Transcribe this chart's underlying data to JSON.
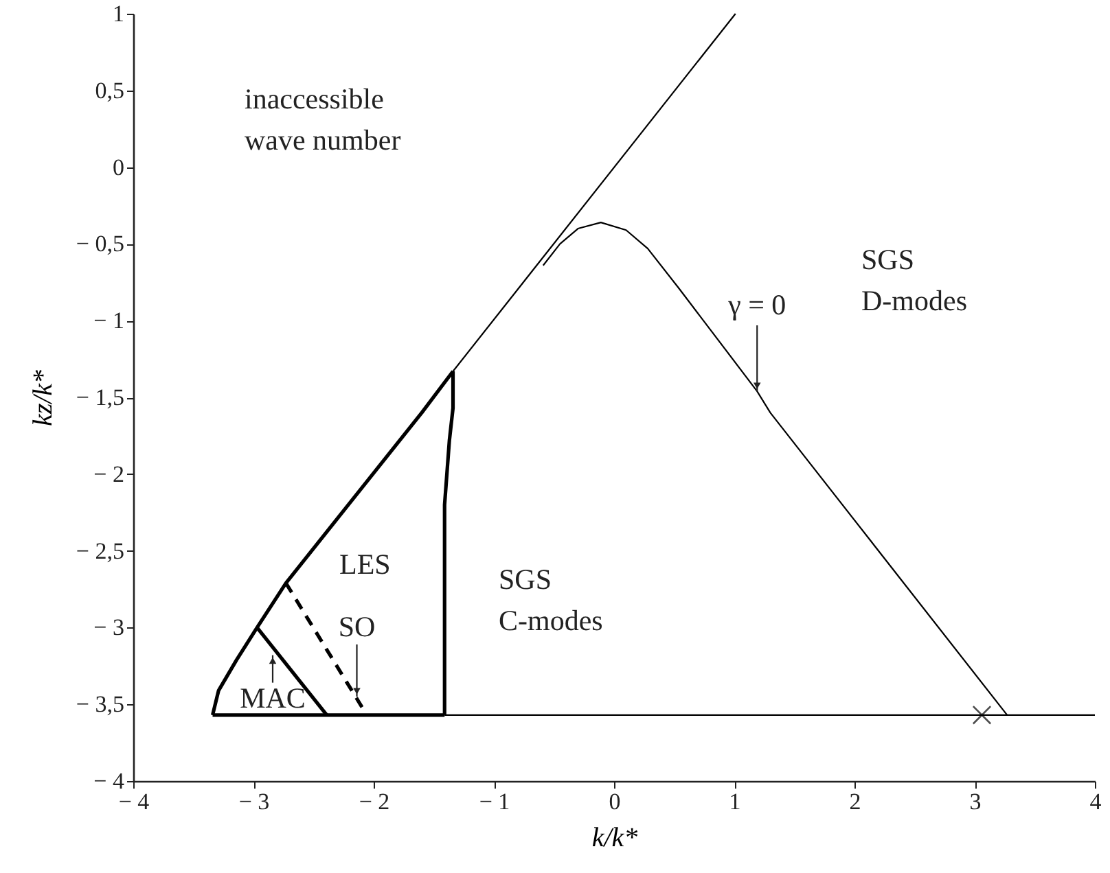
{
  "chart_data": {
    "type": "line",
    "xlabel": "k/k*",
    "ylabel": "kz/k*",
    "xlim": [
      -4,
      4
    ],
    "ylim": [
      -4,
      1
    ],
    "xticks": [
      {
        "value": -4,
        "label": "− 4"
      },
      {
        "value": -3,
        "label": "− 3"
      },
      {
        "value": -2,
        "label": "− 2"
      },
      {
        "value": -1,
        "label": "− 1"
      },
      0,
      1,
      2,
      3,
      4
    ],
    "yticks": [
      {
        "value": -4,
        "label": "− 4"
      },
      {
        "value": -3.5,
        "label": "− 3,5"
      },
      {
        "value": -3,
        "label": "− 3"
      },
      {
        "value": -2.5,
        "label": "− 2,5"
      },
      {
        "value": -2,
        "label": "− 2"
      },
      {
        "value": -1.5,
        "label": "− 1,5"
      },
      {
        "value": -1,
        "label": "− 1"
      },
      {
        "value": -0.5,
        "label": "− 0,5"
      },
      0,
      {
        "value": 0.5,
        "label": "0,5"
      },
      1
    ],
    "grid": false,
    "marker": "none",
    "series": [
      {
        "color": "#000000",
        "x": [
          -1.34,
          1.01
        ],
        "values": [
          -1.33,
          1.0
        ]
      },
      {
        "color": "#000000",
        "x": [
          -3.34,
          -3.29,
          -3.14,
          -2.97,
          -2.73,
          -1.6,
          -1.34
        ],
        "values": [
          -3.57,
          -3.41,
          -3.21,
          -3.0,
          -2.71,
          -1.6,
          -1.33
        ]
      },
      {
        "color": "#000000",
        "x": [
          -1.34,
          -1.34,
          -1.37,
          -1.41,
          -1.41
        ],
        "values": [
          -1.33,
          -1.57,
          -1.78,
          -2.2,
          -3.57
        ]
      },
      {
        "color": "#000000",
        "x": [
          -3.34,
          -1.41
        ],
        "values": [
          -3.57,
          -3.57
        ]
      },
      {
        "color": "#000000",
        "x": [
          -1.41,
          4.0
        ],
        "values": [
          -3.57,
          -3.57
        ]
      },
      {
        "color": "#000000",
        "x": [
          -2.97,
          -2.39
        ],
        "values": [
          -3.0,
          -3.57
        ]
      },
      {
        "color": "#000000",
        "x": [
          -2.73,
          -2.08
        ],
        "values": [
          -2.71,
          -3.54
        ],
        "line_style": "dashed"
      },
      {
        "color": "#000000",
        "x": [
          -0.59,
          -0.45,
          -0.3,
          -0.11,
          0.1,
          0.28,
          0.54,
          1.19,
          1.3,
          3.27
        ],
        "values": [
          -0.64,
          -0.5,
          -0.4,
          -0.36,
          -0.41,
          -0.53,
          -0.79,
          -1.46,
          -1.6,
          -3.57
        ]
      },
      {
        "type": "scatter",
        "marker": "cross",
        "color": "#000000",
        "x": [
          3.06
        ],
        "values": [
          -3.57
        ]
      }
    ],
    "annotations": [
      "inaccessible\nwave number",
      "LES",
      "SGS\nC-modes",
      "SGS\nD-modes",
      {
        "text": "MAC",
        "x": -2.84,
        "y": -3.18
      },
      {
        "text": "SO",
        "x": -2.14,
        "y": -3.45
      },
      {
        "text": "γ = 0",
        "x": 1.19,
        "y": -1.46
      }
    ]
  }
}
